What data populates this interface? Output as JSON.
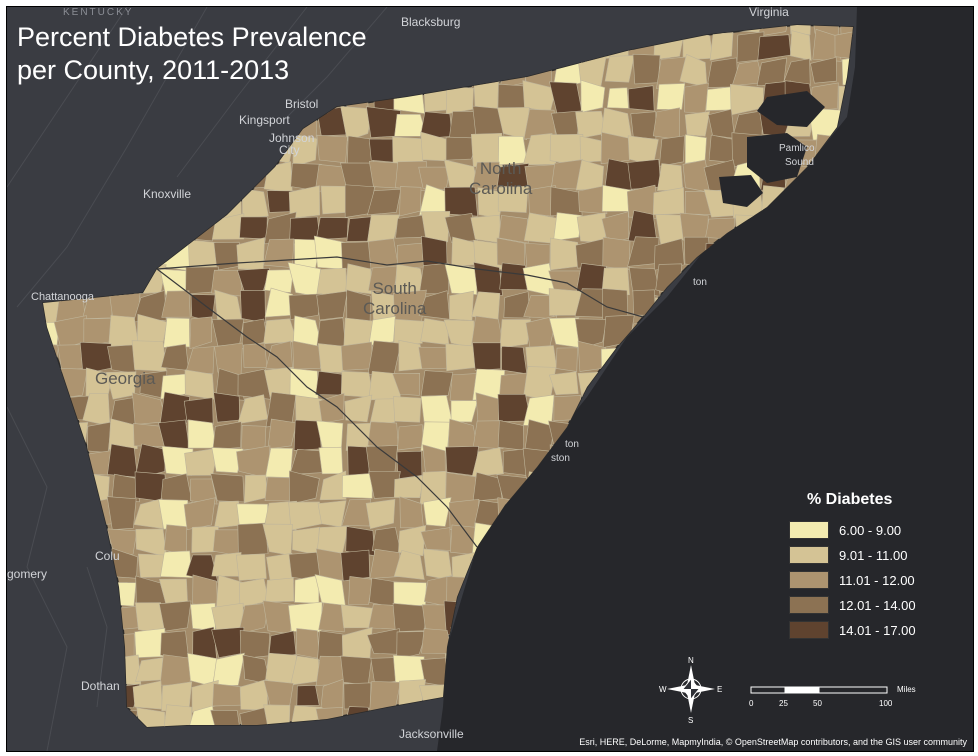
{
  "title_line1": "Percent Diabetes Prevalence",
  "title_line2": "per County, 2011-2013",
  "places": {
    "kentucky": "KENTUCKY",
    "blacksburg": "Blacksburg",
    "virginia": "Virginia",
    "bristol": "Bristol",
    "kingsport": "Kingsport",
    "johnson_city_1": "Johnson",
    "johnson_city_2": "City",
    "knoxville": "Knoxville",
    "chattanooga": "Chattanooga",
    "columbus": "Colu",
    "montgomery": "gomery",
    "dothan": "Dothan",
    "jacksonville": "Jacksonville",
    "pamlico_1": "Pamlico",
    "pamlico_2": "Sound",
    "wilmington": "ton",
    "charleston_1": "ton",
    "charleston_2": "ston"
  },
  "states": {
    "north_carolina_1": "North",
    "north_carolina_2": "Carolina",
    "south_carolina_1": "South",
    "south_carolina_2": "Carolina",
    "georgia": "Georgia"
  },
  "legend": {
    "title": "% Diabetes",
    "items": [
      {
        "label": "6.00 - 9.00",
        "color": "#f3ebb0"
      },
      {
        "label": "9.01 - 11.00",
        "color": "#d4c395"
      },
      {
        "label": "11.01 - 12.00",
        "color": "#ad9470"
      },
      {
        "label": "12.01 - 14.00",
        "color": "#8c7253"
      },
      {
        "label": "14.01 - 17.00",
        "color": "#5f432f"
      }
    ]
  },
  "compass": {
    "n": "N",
    "s": "S",
    "e": "E",
    "w": "W"
  },
  "scale": {
    "ticks": [
      "0",
      "25",
      "50",
      "100"
    ],
    "unit": "Miles"
  },
  "attribution": "Esri, HERE, DeLorme, MapmyIndia, © OpenStreetMap contributors, and the GIS user community",
  "colors": {
    "background": "#2e3036",
    "ocean": "#26272b",
    "land_outside": "#3a3c42",
    "county_border": "#bfb59a"
  }
}
